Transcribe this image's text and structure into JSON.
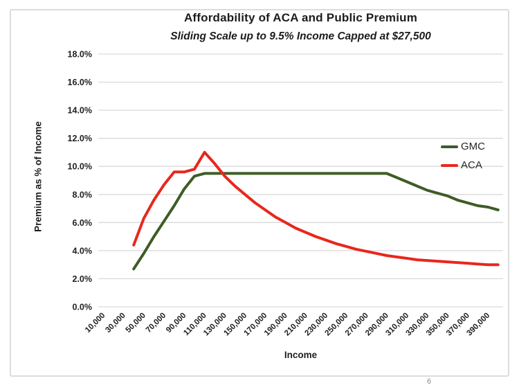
{
  "page": {
    "page_number": "6"
  },
  "chart_data": {
    "type": "line",
    "title": "Affordability of ACA and Public Premium",
    "subtitle": "Sliding Scale up to 9.5% Income Capped at $27,500",
    "xlabel": "Income",
    "ylabel": "Premium as % of Income",
    "x_axis_type": "category",
    "grid": true,
    "legend_position": "right",
    "axis_color": "#d9d9d9",
    "text_color": "#1f1f1f",
    "ylim": [
      0,
      18
    ],
    "y_tick_labels": [
      "0.0%",
      "2.0%",
      "4.0%",
      "6.0%",
      "8.0%",
      "10.0%",
      "12.0%",
      "14.0%",
      "16.0%",
      "18.0%"
    ],
    "x": [
      10000,
      20000,
      30000,
      40000,
      50000,
      60000,
      70000,
      80000,
      90000,
      100000,
      110000,
      120000,
      130000,
      140000,
      150000,
      160000,
      170000,
      180000,
      190000,
      200000,
      210000,
      220000,
      230000,
      240000,
      250000,
      260000,
      270000,
      280000,
      290000,
      300000,
      310000,
      320000,
      330000,
      340000,
      350000,
      360000,
      370000,
      380000,
      390000,
      400000
    ],
    "x_tick_labels": [
      "10,000",
      "30,000",
      "50,000",
      "70,000",
      "90,000",
      "110,000",
      "130,000",
      "150,000",
      "170,000",
      "190,000",
      "210,000",
      "230,000",
      "250,000",
      "270,000",
      "290,000",
      "310,000",
      "330,000",
      "350,000",
      "370,000",
      "390,000"
    ],
    "series": [
      {
        "name": "GMC",
        "color": "#3e5c26",
        "values": [
          null,
          null,
          null,
          2.7,
          3.8,
          5.0,
          6.1,
          7.2,
          8.4,
          9.3,
          9.5,
          9.5,
          9.5,
          9.5,
          9.5,
          9.5,
          9.5,
          9.5,
          9.5,
          9.5,
          9.5,
          9.5,
          9.5,
          9.5,
          9.5,
          9.5,
          9.5,
          9.5,
          9.5,
          9.2,
          8.9,
          8.6,
          8.3,
          8.1,
          7.9,
          7.6,
          7.4,
          7.2,
          7.1,
          6.9
        ]
      },
      {
        "name": "ACA",
        "color": "#e8271c",
        "values": [
          null,
          null,
          null,
          4.4,
          6.3,
          7.6,
          8.7,
          9.6,
          9.6,
          9.8,
          11.0,
          10.2,
          9.3,
          8.6,
          8.0,
          7.4,
          6.9,
          6.4,
          6.0,
          5.6,
          5.3,
          5.0,
          4.75,
          4.5,
          4.3,
          4.1,
          3.95,
          3.8,
          3.65,
          3.55,
          3.45,
          3.35,
          3.3,
          3.25,
          3.2,
          3.15,
          3.1,
          3.05,
          3.0,
          3.0
        ]
      }
    ]
  }
}
